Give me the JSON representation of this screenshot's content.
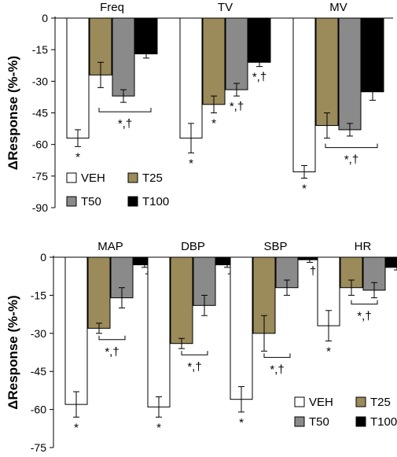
{
  "figure": {
    "ylabel": "ΔResponse (%-%)",
    "colors": {
      "VEH": "#ffffff",
      "T25": "#9b8a5a",
      "T50": "#8a8a8a",
      "T100": "#000000"
    },
    "legend": [
      "VEH",
      "T25",
      "T50",
      "T100"
    ]
  },
  "chart_data": [
    {
      "type": "bar",
      "panel": "top",
      "ylabel": "ΔResponse (%-%)",
      "ylim": [
        -90,
        0
      ],
      "yticks": [
        0,
        -15,
        -30,
        -45,
        -60,
        -75,
        -90
      ],
      "grid": false,
      "legend_position": "bottom-left",
      "series_names": [
        "VEH",
        "T25",
        "T50",
        "T100"
      ],
      "groups": [
        {
          "name": "Freq",
          "values": [
            -57,
            -27,
            -37,
            -17
          ],
          "errors": [
            4,
            6,
            3,
            2
          ],
          "star_below": [
            "*",
            "",
            "",
            ""
          ],
          "bracket_label": "*,†"
        },
        {
          "name": "TV",
          "values": [
            -57,
            -41,
            -34,
            -21
          ],
          "errors": [
            7,
            4,
            3,
            2
          ],
          "star_below": [
            "*",
            "*",
            "",
            ""
          ],
          "bracket_label": "",
          "labels_next": [
            "",
            "",
            "*,†",
            "*,†"
          ]
        },
        {
          "name": "MV",
          "values": [
            -73,
            -51,
            -53,
            -35
          ],
          "errors": [
            3,
            6,
            3,
            4
          ],
          "star_below": [
            "*",
            "",
            "",
            ""
          ],
          "bracket_label": "*,†"
        }
      ]
    },
    {
      "type": "bar",
      "panel": "bottom",
      "ylabel": "ΔResponse (%-%)",
      "ylim": [
        -75,
        0
      ],
      "yticks": [
        0,
        -15,
        -30,
        -45,
        -60,
        -75
      ],
      "grid": false,
      "legend_position": "bottom-right",
      "series_names": [
        "VEH",
        "T25",
        "T50",
        "T100"
      ],
      "groups": [
        {
          "name": "MAP",
          "values": [
            -58,
            -28,
            -16,
            -3
          ],
          "errors": [
            5,
            2,
            4,
            1
          ],
          "star_below": [
            "*",
            "",
            "",
            ""
          ],
          "bracket_label": "*,†",
          "dagger_t100": "†"
        },
        {
          "name": "DBP",
          "values": [
            -59,
            -34,
            -19,
            -3
          ],
          "errors": [
            4,
            2,
            4,
            1
          ],
          "star_below": [
            "*",
            "",
            "",
            ""
          ],
          "bracket_label": "*,†",
          "dagger_t100": "†"
        },
        {
          "name": "SBP",
          "values": [
            -56,
            -30,
            -12,
            -1
          ],
          "errors": [
            5,
            7,
            3,
            1
          ],
          "star_below": [
            "*",
            "",
            "",
            ""
          ],
          "bracket_label": "*,†",
          "dagger_t100": "†"
        },
        {
          "name": "HR",
          "values": [
            -27,
            -12,
            -13,
            -4
          ],
          "errors": [
            6,
            3,
            3,
            1
          ],
          "star_below": [
            "*",
            "",
            "",
            ""
          ],
          "bracket_label": "*,†",
          "dagger_t100": ""
        }
      ]
    }
  ]
}
